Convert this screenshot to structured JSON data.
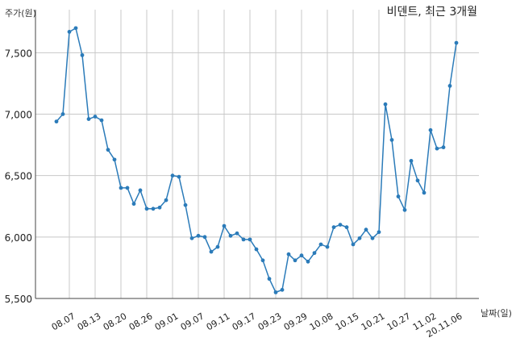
{
  "chart_data": {
    "type": "line",
    "title": "비덴트, 최근 3개월",
    "ylabel": "주가(원)",
    "xlabel": "날짜(일)",
    "ylim": [
      5500,
      7850
    ],
    "y_ticks": [
      5500,
      6000,
      6500,
      7000,
      7500
    ],
    "y_tick_labels": [
      "5,500",
      "6,000",
      "6,500",
      "7,000",
      "7,500"
    ],
    "x_tick_labels": [
      "08.07",
      "08.13",
      "08.20",
      "08.26",
      "09.01",
      "09.07",
      "09.11",
      "09.17",
      "09.23",
      "09.29",
      "10.08",
      "10.15",
      "10.21",
      "10.27",
      "11.02",
      "20.11.06"
    ],
    "x_tick_positions": [
      2,
      6,
      10,
      14,
      18,
      22,
      26,
      30,
      34,
      38,
      42,
      46,
      50,
      54,
      58,
      62
    ],
    "grid": true,
    "color": "#2b7bb9",
    "series": [
      {
        "values": [
          6940,
          7000,
          7670,
          7700,
          7480,
          6960,
          6980,
          6950,
          6710,
          6630,
          6400,
          6400,
          6270,
          6380,
          6230,
          6230,
          6240,
          6300,
          6500,
          6490,
          6260,
          5990,
          6010,
          6000,
          5880,
          5920,
          6090,
          6010,
          6030,
          5980,
          5980,
          5900,
          5810,
          5660,
          5550,
          5570,
          5860,
          5810,
          5850,
          5800,
          5870,
          5940,
          5920,
          6080,
          6100,
          6080,
          5940,
          5990,
          6060,
          5990,
          6040,
          7080,
          6790,
          6330,
          6220,
          6620,
          6460,
          6360,
          6870,
          6720,
          6730,
          7230,
          7580
        ]
      }
    ]
  }
}
